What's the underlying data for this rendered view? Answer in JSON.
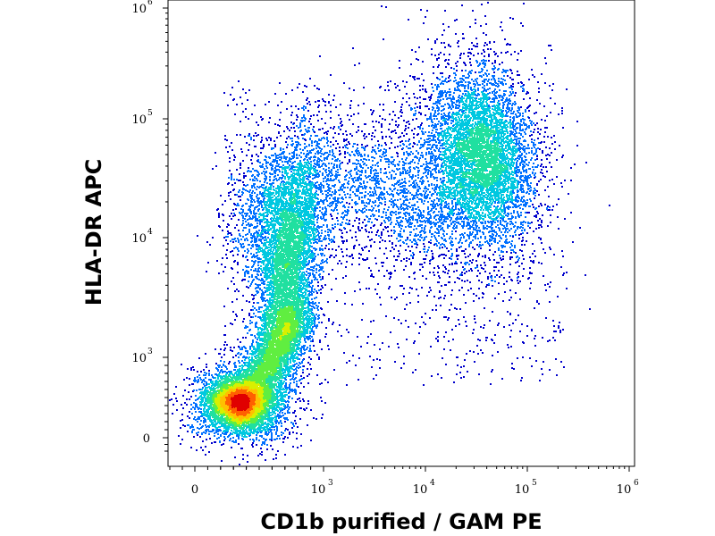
{
  "chart_data": {
    "type": "scatter",
    "subtype": "flow-cytometry-density-dot-plot",
    "title": "",
    "xlabel": "CD1b purified / GAM PE",
    "ylabel": "HLA-DR APC",
    "x_scale": "biexponential",
    "y_scale": "biexponential",
    "xlim": [
      -200,
      1000000
    ],
    "ylim": [
      -200,
      1000000
    ],
    "x_ticks": [
      {
        "label": "0",
        "value": 0
      },
      {
        "label": "10",
        "exp": "3",
        "value": 1000
      },
      {
        "label": "10",
        "exp": "4",
        "value": 10000
      },
      {
        "label": "10",
        "exp": "5",
        "value": 100000
      },
      {
        "label": "10",
        "exp": "6",
        "value": 1000000
      }
    ],
    "y_ticks": [
      {
        "label": "0",
        "value": 0
      },
      {
        "label": "10",
        "exp": "3",
        "value": 1000
      },
      {
        "label": "10",
        "exp": "4",
        "value": 10000
      },
      {
        "label": "10",
        "exp": "5",
        "value": 100000
      },
      {
        "label": "10",
        "exp": "6",
        "value": 1000000
      }
    ],
    "grid": false,
    "legend": "none",
    "density_colormap": [
      "#0000cc",
      "#0070ff",
      "#00c8e0",
      "#20e0a0",
      "#60ee40",
      "#d8f000",
      "#ffc000",
      "#ff6000",
      "#e00000"
    ],
    "populations": [
      {
        "center": {
          "x": 350,
          "y": 450
        },
        "relative_density": 1.0
      },
      {
        "center": {
          "x": 800,
          "y": 5000
        },
        "relative_density": 0.55
      },
      {
        "center": {
          "x": 35000,
          "y": 50000
        },
        "relative_density": 0.5
      }
    ]
  }
}
